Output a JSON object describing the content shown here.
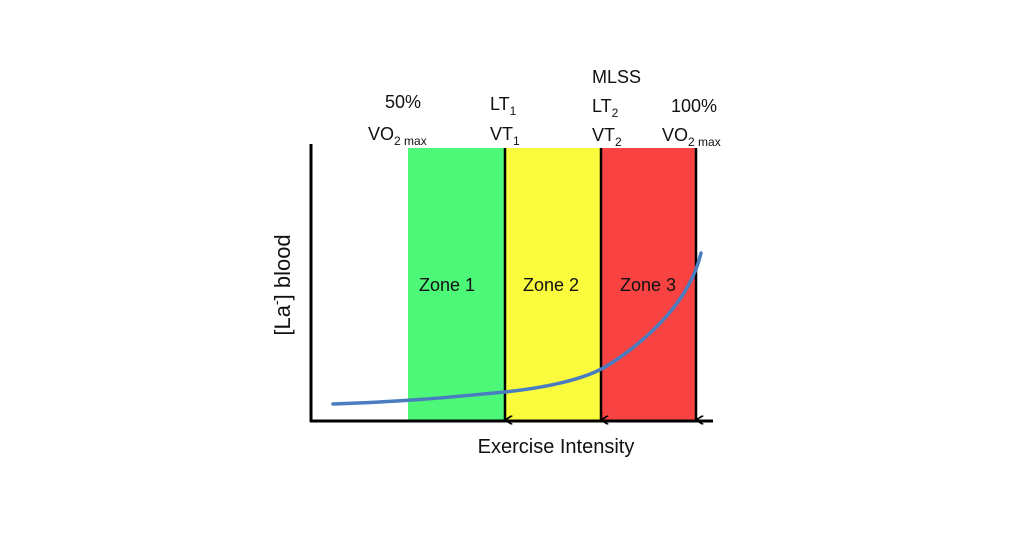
{
  "colors": {
    "zone1": "#4df777",
    "zone2": "#fbfb3e",
    "zone3": "#f94343",
    "curve": "#4a7cc0",
    "axis": "#000000"
  },
  "axes": {
    "x_label": "Exercise Intensity",
    "y_label": {
      "prefix": "[La",
      "superscript": "-",
      "suffix": "] blood"
    }
  },
  "zones": [
    {
      "label": "Zone 1"
    },
    {
      "label": "Zone 2"
    },
    {
      "label": "Zone 3"
    }
  ],
  "markers": {
    "vo2_50": {
      "percent": "50%",
      "base": "VO",
      "sub": "2 max"
    },
    "threshold_1": {
      "lt": {
        "base": "LT",
        "sub": "1"
      },
      "vt": {
        "base": "VT",
        "sub": "1"
      }
    },
    "threshold_2": {
      "mlss": "MLSS",
      "lt": {
        "base": "LT",
        "sub": "2"
      },
      "vt": {
        "base": "VT",
        "sub": "2"
      }
    },
    "vo2_100": {
      "percent": "100%",
      "base": "VO",
      "sub": "2 max"
    }
  }
}
